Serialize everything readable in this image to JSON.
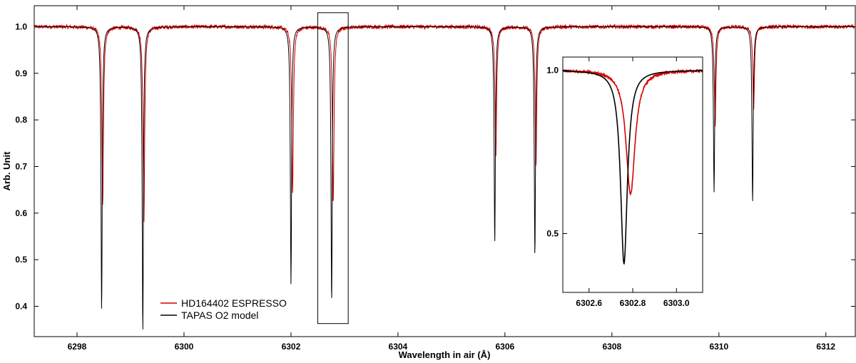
{
  "chart_data": [
    {
      "type": "line",
      "title": "",
      "xlabel": "Wavelength in air (Å)",
      "ylabel": "Arb. Unit",
      "xlim": [
        6297.2,
        6312.55
      ],
      "ylim": [
        0.335,
        1.045
      ],
      "x_ticks": [
        6298,
        6300,
        6302,
        6304,
        6306,
        6308,
        6310,
        6312
      ],
      "y_ticks": [
        0.4,
        0.5,
        0.6,
        0.7,
        0.8,
        0.9,
        1.0
      ],
      "x_tick_labels": [
        "6298",
        "6300",
        "6302",
        "6304",
        "6306",
        "6308",
        "6310",
        "6312"
      ],
      "y_tick_labels": [
        "0.4",
        "0.5",
        "0.6",
        "0.7",
        "0.8",
        "0.9",
        "1.0"
      ],
      "grid": false,
      "legend_position": "bottom-left",
      "highlight_box": {
        "x": [
          6302.5,
          6303.07
        ],
        "y": [
          0.363,
          1.03
        ]
      },
      "series": [
        {
          "name": "HD164402 ESPRESSO",
          "color": "#d40000",
          "continuum": 1.0,
          "noise_amplitude": 0.004,
          "lines": [
            {
              "center": 6298.48,
              "depth": 0.385,
              "width": 0.018
            },
            {
              "center": 6299.25,
              "depth": 0.42,
              "width": 0.018
            },
            {
              "center": 6302.03,
              "depth": 0.357,
              "width": 0.018
            },
            {
              "center": 6302.79,
              "depth": 0.38,
              "width": 0.018
            },
            {
              "center": 6305.83,
              "depth": 0.28,
              "width": 0.018
            },
            {
              "center": 6306.58,
              "depth": 0.3,
              "width": 0.018
            },
            {
              "center": 6309.93,
              "depth": 0.217,
              "width": 0.018
            },
            {
              "center": 6310.65,
              "depth": 0.18,
              "width": 0.018
            }
          ]
        },
        {
          "name": "TAPAS O2 model",
          "color": "#000000",
          "continuum": 1.0,
          "lines": [
            {
              "center": 6298.46,
              "depth": 0.61,
              "width": 0.014
            },
            {
              "center": 6299.23,
              "depth": 0.655,
              "width": 0.014
            },
            {
              "center": 6302.0,
              "depth": 0.553,
              "width": 0.014
            },
            {
              "center": 6302.76,
              "depth": 0.592,
              "width": 0.014
            },
            {
              "center": 6305.81,
              "depth": 0.464,
              "width": 0.014
            },
            {
              "center": 6306.56,
              "depth": 0.492,
              "width": 0.014
            },
            {
              "center": 6309.91,
              "depth": 0.355,
              "width": 0.014
            },
            {
              "center": 6310.63,
              "depth": 0.377,
              "width": 0.014
            }
          ]
        }
      ]
    },
    {
      "type": "line",
      "title": "",
      "xlabel": "",
      "ylabel": "",
      "xlim": [
        6302.48,
        6303.12
      ],
      "ylim": [
        0.32,
        1.04
      ],
      "x_ticks": [
        6302.6,
        6302.8,
        6303.0
      ],
      "y_ticks": [
        0.5,
        1.0
      ],
      "x_tick_labels": [
        "6302.6",
        "6302.8",
        "6303.0"
      ],
      "y_tick_labels": [
        "0.5",
        "1.0"
      ],
      "grid": false,
      "series": [
        {
          "name": "HD164402 ESPRESSO",
          "color": "#d40000",
          "continuum": 1.0,
          "noise_amplitude": 0.003,
          "lines": [
            {
              "center": 6302.79,
              "depth": 0.38,
              "width": 0.025
            }
          ]
        },
        {
          "name": "TAPAS O2 model",
          "color": "#000000",
          "continuum": 1.0,
          "lines": [
            {
              "center": 6302.76,
              "depth": 0.592,
              "width": 0.019
            }
          ]
        }
      ]
    }
  ]
}
